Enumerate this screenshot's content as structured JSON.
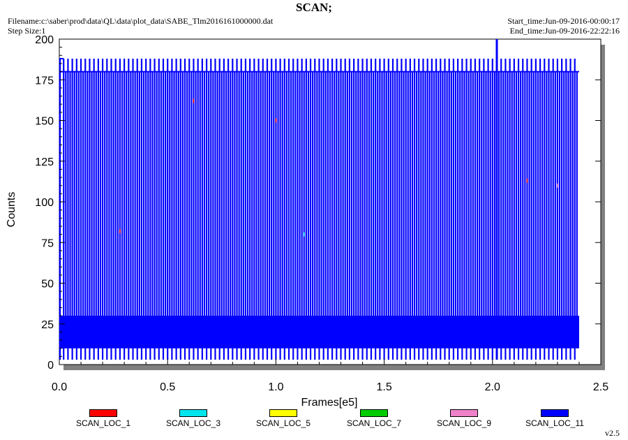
{
  "header": {
    "title": "SCAN;",
    "filename": "Filename:c:\\saber\\prod\\data\\QL\\data\\plot_data\\SABE_Tlm2016161000000.dat",
    "step_size": "Step Size:1",
    "start_time": "Start_time:Jun-09-2016-00:00:17",
    "end_time": "End_time:Jun-09-2016-22:22:16"
  },
  "version": "v2.5",
  "colors": {
    "SCAN_LOC_1": "#ff0000",
    "SCAN_LOC_3": "#00e5ee",
    "SCAN_LOC_5": "#ffff00",
    "SCAN_LOC_7": "#00cc00",
    "SCAN_LOC_9": "#ee82c8",
    "SCAN_LOC_11": "#0000ff"
  },
  "chart_data": {
    "type": "line",
    "title": "SCAN;",
    "xlabel": "Frames[e5]",
    "ylabel": "Counts",
    "xlim": [
      0,
      2.5
    ],
    "ylim": [
      0,
      200
    ],
    "x_ticks": [
      "0.0",
      "0.5",
      "1.0",
      "1.5",
      "2.0",
      "2.5"
    ],
    "y_ticks": [
      "0",
      "25",
      "50",
      "75",
      "100",
      "125",
      "150",
      "175",
      "200"
    ],
    "legend_position": "bottom",
    "grid": false,
    "series": [
      {
        "name": "SCAN_LOC_1",
        "color": "#ff0000",
        "x": [
          0.28,
          0.62,
          1.0,
          2.16
        ],
        "y": [
          82,
          162,
          150,
          113
        ]
      },
      {
        "name": "SCAN_LOC_3",
        "color": "#00e5ee",
        "x": [
          1.13
        ],
        "y": [
          80
        ]
      },
      {
        "name": "SCAN_LOC_5",
        "color": "#ffff00",
        "x": [],
        "y": []
      },
      {
        "name": "SCAN_LOC_7",
        "color": "#00cc00",
        "x": [],
        "y": []
      },
      {
        "name": "SCAN_LOC_9",
        "color": "#ee82c8",
        "x": [
          2.3
        ],
        "y": [
          110
        ]
      },
      {
        "name": "SCAN_LOC_11",
        "color": "#0000ff",
        "description_band": {
          "x_start": 0.0,
          "x_end": 2.4,
          "y_low": 10,
          "y_high": 30
        },
        "spike_x": [
          0.02,
          0.04,
          0.06,
          0.08,
          0.1,
          0.12,
          0.14,
          0.16,
          0.18,
          0.2,
          0.22,
          0.24,
          0.26,
          0.28,
          0.3,
          0.32,
          0.34,
          0.36,
          0.38,
          0.4,
          0.42,
          0.44,
          0.46,
          0.48,
          0.5,
          0.52,
          0.54,
          0.56,
          0.58,
          0.6,
          0.62,
          0.64,
          0.66,
          0.68,
          0.7,
          0.72,
          0.74,
          0.76,
          0.78,
          0.8,
          0.82,
          0.84,
          0.86,
          0.88,
          0.9,
          0.92,
          0.94,
          0.96,
          0.98,
          1.0,
          1.02,
          1.04,
          1.06,
          1.08,
          1.1,
          1.12,
          1.14,
          1.16,
          1.18,
          1.2,
          1.22,
          1.24,
          1.26,
          1.28,
          1.3,
          1.32,
          1.34,
          1.36,
          1.38,
          1.4,
          1.42,
          1.44,
          1.46,
          1.48,
          1.5,
          1.52,
          1.54,
          1.56,
          1.58,
          1.6,
          1.62,
          1.64,
          1.66,
          1.68,
          1.7,
          1.72,
          1.74,
          1.76,
          1.78,
          1.8,
          1.82,
          1.84,
          1.86,
          1.88,
          1.9,
          1.92,
          1.94,
          1.96,
          1.98,
          2.0,
          2.02,
          2.04,
          2.06,
          2.08,
          2.1,
          2.12,
          2.14,
          2.16,
          2.18,
          2.2,
          2.22,
          2.24,
          2.26,
          2.28,
          2.3,
          2.32,
          2.34,
          2.36,
          2.38
        ],
        "spike_high_y": 188,
        "spike_low_y": 180,
        "max_spike": {
          "x": 2.02,
          "y": 200
        },
        "min_y": 3
      }
    ]
  }
}
